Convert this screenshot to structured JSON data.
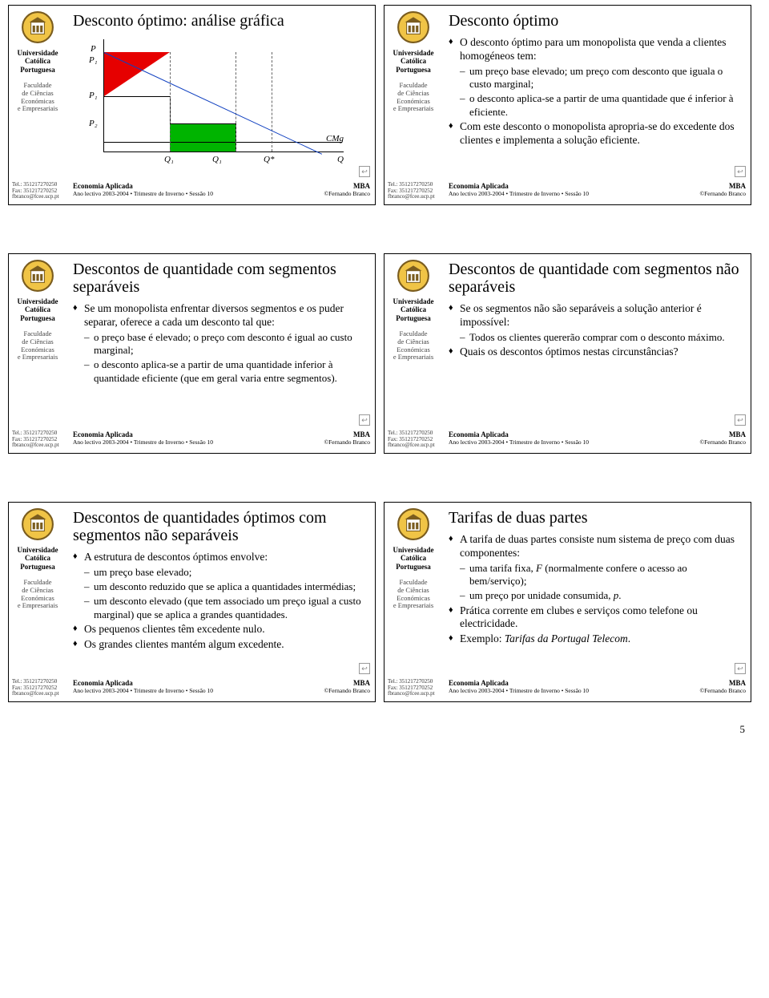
{
  "page_number": "5",
  "common": {
    "uni_l1": "Universidade",
    "uni_l2": "Católica",
    "uni_l3": "Portuguesa",
    "fac_l1": "Faculdade",
    "fac_l2": "de Ciências",
    "fac_l3": "Económicas",
    "fac_l4": "e Empresariais",
    "tel": "Tel.: 351217270250",
    "fax": "Fax: 351217270252",
    "email": "fbranco@fcee.ucp.pt",
    "course": "Economia Aplicada",
    "session": "Ano lectivo 2003-2004 • Trimestre de Inverno • Sessão 10",
    "mba": "MBA",
    "author": "©Fernando Branco",
    "logo_border": "#7a5c1e",
    "logo_fill": "#f0c446"
  },
  "chart": {
    "axis_labels": {
      "P": "P",
      "P1p": "P₁",
      "P1": "P₁",
      "P2": "P₂",
      "Q1a": "Q₁",
      "Q1b": "Q₁",
      "Qstar": "Q*",
      "Q": "Q",
      "CMg": "CMg"
    },
    "colors": {
      "demand_line": "#1040c0",
      "surplus_red": "#e60000",
      "surplus_green": "#00b400",
      "axes": "#000000",
      "dash": "#666666"
    }
  },
  "slides": [
    {
      "title": "Desconto óptimo: análise gráfica",
      "is_chart": true
    },
    {
      "title": "Desconto óptimo",
      "bullets": [
        {
          "lvl": 1,
          "text": "O desconto óptimo para um monopolista que venda a clientes homogéneos tem:"
        },
        {
          "lvl": 2,
          "text": "um preço base elevado; um preço com desconto que iguala o custo marginal;"
        },
        {
          "lvl": 2,
          "text": "o desconto aplica-se a partir de uma quantidade que é inferior à eficiente."
        },
        {
          "lvl": 1,
          "text": "Com este desconto o monopolista apropria-se do excedente dos clientes e implementa a solução eficiente."
        }
      ]
    },
    {
      "title": "Descontos de quantidade com segmentos separáveis",
      "bullets": [
        {
          "lvl": 1,
          "text": "Se um monopolista enfrentar diversos segmentos e os puder separar, oferece a cada um desconto tal que:"
        },
        {
          "lvl": 2,
          "text": "o preço base é elevado; o preço com desconto é igual ao custo marginal;"
        },
        {
          "lvl": 2,
          "text": "o desconto aplica-se a partir de uma quantidade inferior à quantidade eficiente (que em geral varia entre segmentos)."
        }
      ]
    },
    {
      "title": "Descontos de quantidade com segmentos não separáveis",
      "bullets": [
        {
          "lvl": 1,
          "text": "Se os segmentos não são separáveis a solução anterior é impossível:"
        },
        {
          "lvl": 2,
          "text": "Todos os clientes quererão comprar com o desconto máximo."
        },
        {
          "lvl": 1,
          "text": "Quais os descontos óptimos nestas circunstâncias?"
        }
      ]
    },
    {
      "title": "Descontos de quantidades óptimos com segmentos não separáveis",
      "bullets": [
        {
          "lvl": 1,
          "text": "A estrutura de descontos óptimos envolve:"
        },
        {
          "lvl": 2,
          "text": "um preço base elevado;"
        },
        {
          "lvl": 2,
          "text": "um desconto reduzido que se aplica a quantidades intermédias;"
        },
        {
          "lvl": 2,
          "text": "um desconto elevado (que tem associado um preço igual a custo marginal) que se aplica a grandes quantidades."
        },
        {
          "lvl": 1,
          "text": "Os pequenos clientes têm excedente nulo."
        },
        {
          "lvl": 1,
          "text": "Os grandes clientes mantém algum excedente."
        }
      ]
    },
    {
      "title": "Tarifas de duas partes",
      "bullets": [
        {
          "lvl": 1,
          "text": "A tarifa de duas partes consiste num sistema de preço com duas componentes:"
        },
        {
          "lvl": 2,
          "html": "uma tarifa fixa, <span class='em'>F</span> (normalmente confere o acesso ao bem/serviço);"
        },
        {
          "lvl": 2,
          "html": "um preço por unidade consumida, <span class='em'>p</span>."
        },
        {
          "lvl": 1,
          "text": "Prática corrente em clubes e serviços como telefone ou electricidade."
        },
        {
          "lvl": 1,
          "html": "Exemplo: <span class='em'>Tarifas da Portugal Telecom</span>."
        }
      ]
    }
  ]
}
